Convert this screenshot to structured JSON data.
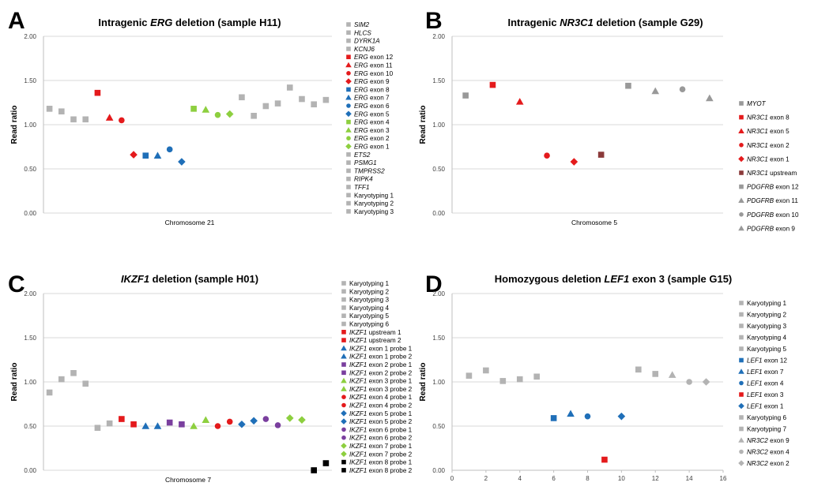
{
  "panels": [
    {
      "letter": "A",
      "title_parts": [
        {
          "t": "Intragenic ",
          "i": false
        },
        {
          "t": "ERG",
          "i": true
        },
        {
          "t": " deletion (sample H11)",
          "i": false
        }
      ]
    },
    {
      "letter": "B",
      "title_parts": [
        {
          "t": "Intragenic ",
          "i": false
        },
        {
          "t": "NR3C1",
          "i": true
        },
        {
          "t": " deletion (sample G29)",
          "i": false
        }
      ]
    },
    {
      "letter": "C",
      "title_parts": [
        {
          "t": "IKZF1",
          "i": true
        },
        {
          "t": " deletion (sample H01)",
          "i": false
        }
      ]
    },
    {
      "letter": "D",
      "title_parts": [
        {
          "t": "Homozygous deletion ",
          "i": false
        },
        {
          "t": "LEF1",
          "i": true
        },
        {
          "t": " exon 3 (sample G15)",
          "i": false
        }
      ]
    }
  ],
  "colors": {
    "gray": "#b3b3b3",
    "red": "#e41a1c",
    "blue": "#1f6fb8",
    "green": "#8dcf3f",
    "purple": "#7a3f9e",
    "black": "#000000",
    "darkred": "#8b3a3a",
    "midgray": "#999999",
    "dark": "#808080"
  },
  "chart_data": [
    {
      "type": "scatter",
      "title": "Intragenic ERG deletion (sample H11)",
      "xlabel": "Chromosome  21",
      "ylabel": "Read ratio",
      "ylim": [
        0,
        2
      ],
      "yticks": [
        "0.00",
        "0.50",
        "1.00",
        "1.50",
        "2.00"
      ],
      "grid": true,
      "legend": "right",
      "series": [
        {
          "name": "SIM2",
          "italic": "SIM2",
          "rest": "",
          "color": "gray",
          "shape": "square",
          "x": 1,
          "y": 1.18
        },
        {
          "name": "HLCS",
          "italic": "HLCS",
          "rest": "",
          "color": "gray",
          "shape": "square",
          "x": 2,
          "y": 1.15
        },
        {
          "name": "DYRK1A",
          "italic": "DYRK1A",
          "rest": "",
          "color": "gray",
          "shape": "square",
          "x": 3,
          "y": 1.06
        },
        {
          "name": "KCNJ6",
          "italic": "KCNJ6",
          "rest": "",
          "color": "gray",
          "shape": "square",
          "x": 4,
          "y": 1.06
        },
        {
          "name": "ERG exon 12",
          "italic": "ERG",
          "rest": " exon 12",
          "color": "red",
          "shape": "square",
          "x": 5,
          "y": 1.36
        },
        {
          "name": "ERG exon 11",
          "italic": "ERG",
          "rest": " exon 11",
          "color": "red",
          "shape": "triangle",
          "x": 6,
          "y": 1.08
        },
        {
          "name": "ERG exon 10",
          "italic": "ERG",
          "rest": " exon 10",
          "color": "red",
          "shape": "circle",
          "x": 7,
          "y": 1.05
        },
        {
          "name": "ERG exon 9",
          "italic": "ERG",
          "rest": " exon 9",
          "color": "red",
          "shape": "diamond",
          "x": 8,
          "y": 0.66
        },
        {
          "name": "ERG exon 8",
          "italic": "ERG",
          "rest": " exon 8",
          "color": "blue",
          "shape": "square",
          "x": 9,
          "y": 0.65
        },
        {
          "name": "ERG exon 7",
          "italic": "ERG",
          "rest": " exon 7",
          "color": "blue",
          "shape": "triangle",
          "x": 10,
          "y": 0.65
        },
        {
          "name": "ERG exon 6",
          "italic": "ERG",
          "rest": " exon 6",
          "color": "blue",
          "shape": "circle",
          "x": 11,
          "y": 0.72
        },
        {
          "name": "ERG exon 5",
          "italic": "ERG",
          "rest": " exon 5",
          "color": "blue",
          "shape": "diamond",
          "x": 12,
          "y": 0.58
        },
        {
          "name": "ERG exon 4",
          "italic": "ERG",
          "rest": " exon 4",
          "color": "green",
          "shape": "square",
          "x": 13,
          "y": 1.18
        },
        {
          "name": "ERG exon 3",
          "italic": "ERG",
          "rest": " exon 3",
          "color": "green",
          "shape": "triangle",
          "x": 14,
          "y": 1.17
        },
        {
          "name": "ERG exon 2",
          "italic": "ERG",
          "rest": " exon 2",
          "color": "green",
          "shape": "circle",
          "x": 15,
          "y": 1.11
        },
        {
          "name": "ERG exon 1",
          "italic": "ERG",
          "rest": " exon 1",
          "color": "green",
          "shape": "diamond",
          "x": 16,
          "y": 1.12
        },
        {
          "name": "ETS2",
          "italic": "ETS2",
          "rest": "",
          "color": "gray",
          "shape": "square",
          "x": 17,
          "y": 1.31
        },
        {
          "name": "PSMG1",
          "italic": "PSMG1",
          "rest": "",
          "color": "gray",
          "shape": "square",
          "x": 18,
          "y": 1.1
        },
        {
          "name": "TMPRSS2",
          "italic": "TMPRSS2",
          "rest": "",
          "color": "gray",
          "shape": "square",
          "x": 19,
          "y": 1.21
        },
        {
          "name": "RIPK4",
          "italic": "RIPK4",
          "rest": "",
          "color": "gray",
          "shape": "square",
          "x": 20,
          "y": 1.24
        },
        {
          "name": "TFF1",
          "italic": "TFF1",
          "rest": "",
          "color": "gray",
          "shape": "square",
          "x": 21,
          "y": 1.42
        },
        {
          "name": "Karyotyping 1",
          "italic": "",
          "rest": "Karyotyping 1",
          "color": "gray",
          "shape": "square",
          "x": 22,
          "y": 1.29
        },
        {
          "name": "Karyotyping 2",
          "italic": "",
          "rest": "Karyotyping 2",
          "color": "gray",
          "shape": "square",
          "x": 23,
          "y": 1.23
        },
        {
          "name": "Karyotyping 3",
          "italic": "",
          "rest": "Karyotyping 3",
          "color": "gray",
          "shape": "square",
          "x": 24,
          "y": 1.28
        }
      ]
    },
    {
      "type": "scatter",
      "title": "Intragenic NR3C1 deletion (sample G29)",
      "xlabel": "Chromosome  5",
      "ylabel": "Read ratio",
      "ylim": [
        0,
        2
      ],
      "yticks": [
        "0.00",
        "0.50",
        "1.00",
        "1.50",
        "2.00"
      ],
      "grid": true,
      "legend": "right",
      "series": [
        {
          "name": "MYOT",
          "italic": "MYOT",
          "rest": "",
          "color": "midgray",
          "shape": "square",
          "x": 1,
          "y": 1.33
        },
        {
          "name": "NR3C1 exon 8",
          "italic": "NR3C1",
          "rest": " exon 8",
          "color": "red",
          "shape": "square",
          "x": 2,
          "y": 1.45
        },
        {
          "name": "NR3C1 exon 5",
          "italic": "NR3C1",
          "rest": " exon 5",
          "color": "red",
          "shape": "triangle",
          "x": 3,
          "y": 1.26
        },
        {
          "name": "NR3C1 exon 2",
          "italic": "NR3C1",
          "rest": " exon 2",
          "color": "red",
          "shape": "circle",
          "x": 4,
          "y": 0.65
        },
        {
          "name": "NR3C1 exon 1",
          "italic": "NR3C1",
          "rest": " exon 1",
          "color": "red",
          "shape": "diamond",
          "x": 5,
          "y": 0.58
        },
        {
          "name": "NR3C1 upstream",
          "italic": "NR3C1",
          "rest": " upstream",
          "color": "darkred",
          "shape": "square",
          "x": 6,
          "y": 0.66
        },
        {
          "name": "PDGFRB exon 12",
          "italic": "PDGFRB",
          "rest": "  exon 12",
          "color": "midgray",
          "shape": "square",
          "x": 7,
          "y": 1.44
        },
        {
          "name": "PDGFRB exon 11",
          "italic": "PDGFRB",
          "rest": "  exon 11",
          "color": "midgray",
          "shape": "triangle",
          "x": 8,
          "y": 1.38
        },
        {
          "name": "PDGFRB exon 10",
          "italic": "PDGFRB",
          "rest": "  exon 10",
          "color": "midgray",
          "shape": "circle",
          "x": 9,
          "y": 1.4
        },
        {
          "name": "PDGFRB exon 9",
          "italic": "PDGFRB",
          "rest": "  exon 9",
          "color": "midgray",
          "shape": "triangle",
          "x": 10,
          "y": 1.3
        }
      ]
    },
    {
      "type": "scatter",
      "title": "IKZF1 deletion (sample H01)",
      "xlabel": "Chromosome  7",
      "ylabel": "Read ratio",
      "ylim": [
        0,
        2
      ],
      "yticks": [
        "0.00",
        "0.50",
        "1.00",
        "1.50",
        "2.00"
      ],
      "grid": true,
      "legend": "right",
      "series": [
        {
          "name": "Karyotyping 1",
          "italic": "",
          "rest": "Karyotyping 1",
          "color": "gray",
          "shape": "square",
          "x": 1,
          "y": 0.88
        },
        {
          "name": "Karyotyping 2",
          "italic": "",
          "rest": "Karyotyping 2",
          "color": "gray",
          "shape": "square",
          "x": 2,
          "y": 1.03
        },
        {
          "name": "Karyotyping 3",
          "italic": "",
          "rest": "Karyotyping 3",
          "color": "gray",
          "shape": "square",
          "x": 3,
          "y": 1.1
        },
        {
          "name": "Karyotyping 4",
          "italic": "",
          "rest": "Karyotyping 4",
          "color": "gray",
          "shape": "square",
          "x": 4,
          "y": 0.98
        },
        {
          "name": "Karyotyping 5",
          "italic": "",
          "rest": "Karyotyping 5",
          "color": "gray",
          "shape": "square",
          "x": 5,
          "y": 0.48
        },
        {
          "name": "Karyotyping 6",
          "italic": "",
          "rest": "Karyotyping 6",
          "color": "gray",
          "shape": "square",
          "x": 6,
          "y": 0.53
        },
        {
          "name": "IKZF1 upstream 1",
          "italic": "IKZF1",
          "rest": " upstream 1",
          "color": "red",
          "shape": "square",
          "x": 7,
          "y": 0.58
        },
        {
          "name": "IKZF1 upstream 2",
          "italic": "IKZF1",
          "rest": " upstream 2",
          "color": "red",
          "shape": "square",
          "x": 8,
          "y": 0.52
        },
        {
          "name": "IKZF1 exon 1 probe 1",
          "italic": "IKZF1",
          "rest": " exon 1 probe 1",
          "color": "blue",
          "shape": "triangle",
          "x": 9,
          "y": 0.5
        },
        {
          "name": "IKZF1 exon 1 probe 2",
          "italic": "IKZF1",
          "rest": " exon 1 probe 2",
          "color": "blue",
          "shape": "triangle",
          "x": 10,
          "y": 0.5
        },
        {
          "name": "IKZF1 exon 2 probe 1",
          "italic": "IKZF1",
          "rest": " exon 2 probe 1",
          "color": "purple",
          "shape": "square",
          "x": 11,
          "y": 0.54
        },
        {
          "name": "IKZF1 exon 2 probe 2",
          "italic": "IKZF1",
          "rest": " exon 2 probe 2",
          "color": "purple",
          "shape": "square",
          "x": 12,
          "y": 0.52
        },
        {
          "name": "IKZF1 exon 3 probe 1",
          "italic": "IKZF1",
          "rest": " exon 3 probe 1",
          "color": "green",
          "shape": "triangle",
          "x": 13,
          "y": 0.5
        },
        {
          "name": "IKZF1 exon 3 probe 2",
          "italic": "IKZF1",
          "rest": " exon 3 probe 2",
          "color": "green",
          "shape": "triangle",
          "x": 14,
          "y": 0.57
        },
        {
          "name": "IKZF1 exon 4 probe 1",
          "italic": "IKZF1",
          "rest": " exon 4 probe 1",
          "color": "red",
          "shape": "circle",
          "x": 15,
          "y": 0.5
        },
        {
          "name": "IKZF1 exon 4 probe 2",
          "italic": "IKZF1",
          "rest": " exon 4 probe 2",
          "color": "red",
          "shape": "circle",
          "x": 16,
          "y": 0.55
        },
        {
          "name": "IKZF1 exon 5 probe 1",
          "italic": "IKZF1",
          "rest": " exon 5 probe 1",
          "color": "blue",
          "shape": "diamond",
          "x": 17,
          "y": 0.52
        },
        {
          "name": "IKZF1 exon 5 probe 2",
          "italic": "IKZF1",
          "rest": " exon 5 probe 2",
          "color": "blue",
          "shape": "diamond",
          "x": 18,
          "y": 0.56
        },
        {
          "name": "IKZF1 exon 6 probe 1",
          "italic": "IKZF1",
          "rest": " exon 6 probe 1",
          "color": "purple",
          "shape": "circle",
          "x": 19,
          "y": 0.58
        },
        {
          "name": "IKZF1 exon 6 probe 2",
          "italic": "IKZF1",
          "rest": " exon 6 probe 2",
          "color": "purple",
          "shape": "circle",
          "x": 20,
          "y": 0.51
        },
        {
          "name": "IKZF1 exon 7 probe 1",
          "italic": "IKZF1",
          "rest": " exon 7 probe 1",
          "color": "green",
          "shape": "diamond",
          "x": 21,
          "y": 0.59
        },
        {
          "name": "IKZF1 exon 7 probe 2",
          "italic": "IKZF1",
          "rest": " exon 7 probe 2",
          "color": "green",
          "shape": "diamond",
          "x": 22,
          "y": 0.57
        },
        {
          "name": "IKZF1 exon 8 probe 1",
          "italic": "IKZF1",
          "rest": " exon 8 probe 1",
          "color": "black",
          "shape": "square",
          "x": 23,
          "y": 0.0
        },
        {
          "name": "IKZF1 exon 8 probe 2",
          "italic": "IKZF1",
          "rest": " exon 8 probe 2",
          "color": "black",
          "shape": "square",
          "x": 24,
          "y": 0.08
        }
      ]
    },
    {
      "type": "scatter",
      "title": "Homozygous deletion LEF1 exon 3 (sample G15)",
      "xlabel": "",
      "ylabel": "Read ratio",
      "ylim": [
        0,
        2
      ],
      "xlim": [
        0,
        16
      ],
      "yticks": [
        "0.00",
        "0.50",
        "1.00",
        "1.50",
        "2.00"
      ],
      "xticks": [
        "0",
        "2",
        "4",
        "6",
        "8",
        "10",
        "12",
        "14",
        "16"
      ],
      "grid": true,
      "legend": "right",
      "series": [
        {
          "name": "Karyotyping 1",
          "italic": "",
          "rest": "Karyotyping 1",
          "color": "gray",
          "shape": "square",
          "x": 1,
          "y": 1.07
        },
        {
          "name": "Karyotyping 2",
          "italic": "",
          "rest": "Karyotyping 2",
          "color": "gray",
          "shape": "square",
          "x": 2,
          "y": 1.13
        },
        {
          "name": "Karyotyping 3",
          "italic": "",
          "rest": "Karyotyping 3",
          "color": "gray",
          "shape": "square",
          "x": 3,
          "y": 1.01
        },
        {
          "name": "Karyotyping 4",
          "italic": "",
          "rest": "Karyotyping 4",
          "color": "gray",
          "shape": "square",
          "x": 4,
          "y": 1.03
        },
        {
          "name": "Karyotyping 5",
          "italic": "",
          "rest": "Karyotyping 5",
          "color": "gray",
          "shape": "square",
          "x": 5,
          "y": 1.06
        },
        {
          "name": "LEF1 exon 12",
          "italic": "LEF1",
          "rest": " exon 12",
          "color": "blue",
          "shape": "square",
          "x": 6,
          "y": 0.59
        },
        {
          "name": "LEF1 exon 7",
          "italic": "LEF1",
          "rest": " exon 7",
          "color": "blue",
          "shape": "triangle",
          "x": 7,
          "y": 0.64
        },
        {
          "name": "LEF1 exon 4",
          "italic": "LEF1",
          "rest": " exon 4",
          "color": "blue",
          "shape": "circle",
          "x": 8,
          "y": 0.61
        },
        {
          "name": "LEF1 exon 3",
          "italic": "LEF1",
          "rest": " exon 3",
          "color": "red",
          "shape": "square",
          "x": 9,
          "y": 0.12
        },
        {
          "name": "LEF1 exon 1",
          "italic": "LEF1",
          "rest": " exon 1",
          "color": "blue",
          "shape": "diamond",
          "x": 10,
          "y": 0.61
        },
        {
          "name": "Karyotyping 6",
          "italic": "",
          "rest": "Karyotyping 6",
          "color": "gray",
          "shape": "square",
          "x": 11,
          "y": 1.14
        },
        {
          "name": "Karyotyping 7",
          "italic": "",
          "rest": "Karyotyping 7",
          "color": "gray",
          "shape": "square",
          "x": 12,
          "y": 1.09
        },
        {
          "name": "NR3C2 exon 9",
          "italic": "NR3C2",
          "rest": " exon 9",
          "color": "gray",
          "shape": "triangle",
          "x": 13,
          "y": 1.08
        },
        {
          "name": "NR3C2 exon 4",
          "italic": "NR3C2",
          "rest": " exon 4",
          "color": "gray",
          "shape": "circle",
          "x": 14,
          "y": 1.0
        },
        {
          "name": "NR3C2 exon 2",
          "italic": "NR3C2",
          "rest": " exon 2",
          "color": "gray",
          "shape": "diamond",
          "x": 15,
          "y": 1.0
        }
      ]
    }
  ]
}
